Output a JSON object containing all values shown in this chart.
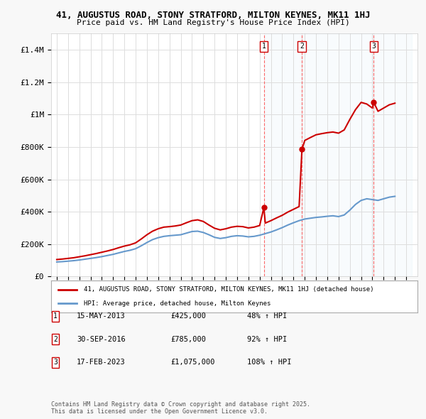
{
  "title_line1": "41, AUGUSTUS ROAD, STONY STRATFORD, MILTON KEYNES, MK11 1HJ",
  "title_line2": "Price paid vs. HM Land Registry's House Price Index (HPI)",
  "ylabel_ticks": [
    "£0",
    "£200K",
    "£400K",
    "£600K",
    "£800K",
    "£1M",
    "£1.2M",
    "£1.4M"
  ],
  "ytick_values": [
    0,
    200000,
    400000,
    600000,
    800000,
    1000000,
    1200000,
    1400000
  ],
  "ylim": [
    0,
    1500000
  ],
  "xlim_start": 1994.5,
  "xlim_end": 2027,
  "background_color": "#f8f8f8",
  "plot_bg_color": "#ffffff",
  "red_line_color": "#cc0000",
  "blue_line_color": "#6699cc",
  "grid_color": "#dddddd",
  "sale_dates": [
    2013.37,
    2016.75,
    2023.12
  ],
  "sale_prices": [
    425000,
    785000,
    1075000
  ],
  "sale_labels": [
    "1",
    "2",
    "3"
  ],
  "vline_color": "#ff4444",
  "vline_style": "--",
  "legend_label_red": "41, AUGUSTUS ROAD, STONY STRATFORD, MILTON KEYNES, MK11 1HJ (detached house)",
  "legend_label_blue": "HPI: Average price, detached house, Milton Keynes",
  "table_rows": [
    [
      "1",
      "15-MAY-2013",
      "£425,000",
      "48% ↑ HPI"
    ],
    [
      "2",
      "30-SEP-2016",
      "£785,000",
      "92% ↑ HPI"
    ],
    [
      "3",
      "17-FEB-2023",
      "£1,075,000",
      "108% ↑ HPI"
    ]
  ],
  "footer_text": "Contains HM Land Registry data © Crown copyright and database right 2025.\nThis data is licensed under the Open Government Licence v3.0.",
  "hpi_x": [
    1995,
    1995.5,
    1996,
    1996.5,
    1997,
    1997.5,
    1998,
    1998.5,
    1999,
    1999.5,
    2000,
    2000.5,
    2001,
    2001.5,
    2002,
    2002.5,
    2003,
    2003.5,
    2004,
    2004.5,
    2005,
    2005.5,
    2006,
    2006.5,
    2007,
    2007.5,
    2008,
    2008.5,
    2009,
    2009.5,
    2010,
    2010.5,
    2011,
    2011.5,
    2012,
    2012.5,
    2013,
    2013.5,
    2014,
    2014.5,
    2015,
    2015.5,
    2016,
    2016.5,
    2017,
    2017.5,
    2018,
    2018.5,
    2019,
    2019.5,
    2020,
    2020.5,
    2021,
    2021.5,
    2022,
    2022.5,
    2023,
    2023.5,
    2024,
    2024.5,
    2025
  ],
  "hpi_y": [
    90000,
    92000,
    95000,
    98000,
    102000,
    107000,
    112000,
    117000,
    123000,
    130000,
    137000,
    146000,
    155000,
    162000,
    172000,
    190000,
    210000,
    228000,
    240000,
    248000,
    252000,
    255000,
    258000,
    268000,
    278000,
    280000,
    272000,
    258000,
    242000,
    235000,
    240000,
    248000,
    252000,
    250000,
    245000,
    248000,
    255000,
    265000,
    275000,
    288000,
    302000,
    318000,
    332000,
    345000,
    355000,
    360000,
    365000,
    368000,
    372000,
    375000,
    370000,
    380000,
    410000,
    445000,
    470000,
    480000,
    475000,
    470000,
    480000,
    490000,
    495000
  ],
  "price_x": [
    1995,
    1995.5,
    1996,
    1996.5,
    1997,
    1997.5,
    1998,
    1998.5,
    1999,
    1999.5,
    2000,
    2000.5,
    2001,
    2001.5,
    2002,
    2002.5,
    2003,
    2003.5,
    2004,
    2004.5,
    2005,
    2005.5,
    2006,
    2006.5,
    2007,
    2007.5,
    2008,
    2008.5,
    2009,
    2009.5,
    2010,
    2010.5,
    2011,
    2011.5,
    2012,
    2012.5,
    2013,
    2013.37,
    2013.5,
    2014,
    2014.5,
    2015,
    2015.5,
    2016,
    2016.5,
    2016.75,
    2017,
    2017.5,
    2018,
    2018.5,
    2019,
    2019.5,
    2020,
    2020.5,
    2021,
    2021.5,
    2022,
    2022.5,
    2023,
    2023.12,
    2023.5,
    2024,
    2024.5,
    2025
  ],
  "price_y": [
    105000,
    108000,
    112000,
    116000,
    122000,
    128000,
    135000,
    142000,
    150000,
    158000,
    167000,
    178000,
    188000,
    196000,
    208000,
    232000,
    258000,
    280000,
    295000,
    305000,
    308000,
    312000,
    318000,
    332000,
    345000,
    350000,
    340000,
    318000,
    298000,
    288000,
    295000,
    305000,
    310000,
    308000,
    300000,
    305000,
    315000,
    425000,
    330000,
    345000,
    362000,
    378000,
    398000,
    415000,
    432000,
    785000,
    840000,
    858000,
    875000,
    882000,
    888000,
    892000,
    885000,
    905000,
    970000,
    1030000,
    1075000,
    1065000,
    1040000,
    1075000,
    1020000,
    1040000,
    1060000,
    1070000
  ]
}
